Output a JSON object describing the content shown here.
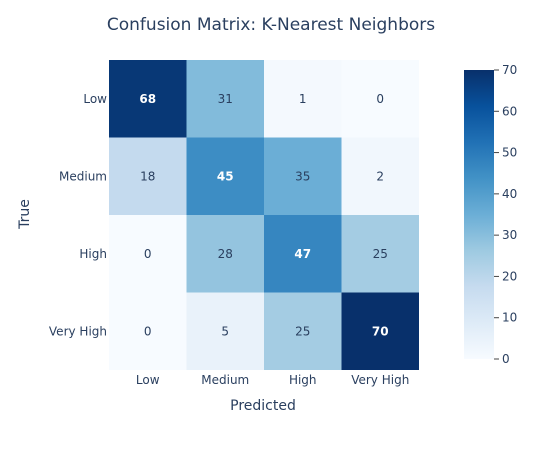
{
  "chart_data": {
    "type": "heatmap",
    "title": "Confusion Matrix: K-Nearest Neighbors",
    "xlabel": "Predicted",
    "ylabel": "True",
    "x_categories": [
      "Low",
      "Medium",
      "High",
      "Very High"
    ],
    "y_categories": [
      "Low",
      "Medium",
      "High",
      "Very High"
    ],
    "values": [
      [
        68,
        31,
        1,
        0
      ],
      [
        18,
        45,
        35,
        2
      ],
      [
        0,
        28,
        47,
        25
      ],
      [
        0,
        5,
        25,
        70
      ]
    ],
    "colorscale": "Blues",
    "zrange": [
      0,
      70
    ],
    "colorbar_ticks": [
      0,
      10,
      20,
      30,
      40,
      50,
      60,
      70
    ],
    "colors": {
      "text": "#2a3f5f",
      "scale": [
        "#f7fbff",
        "#deebf7",
        "#c6dbef",
        "#9ecae1",
        "#6baed6",
        "#4292c6",
        "#2171b5",
        "#08519c",
        "#08306b"
      ]
    }
  }
}
